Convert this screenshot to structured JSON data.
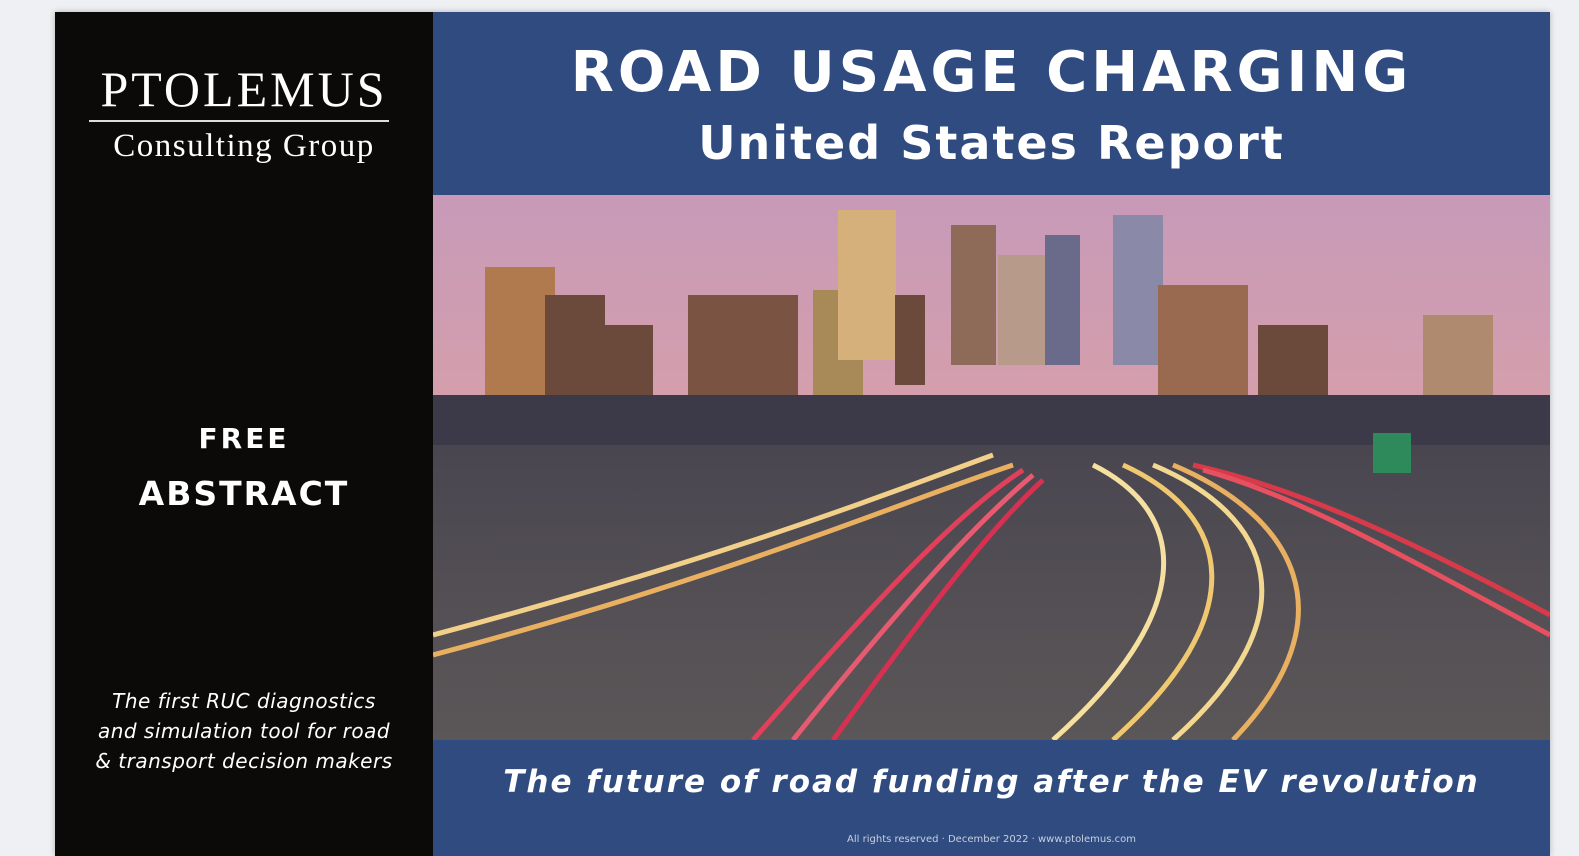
{
  "logo": {
    "name": "PTOLEMUS",
    "tagline": "Consulting Group"
  },
  "sidebar": {
    "badge": [
      "FREE",
      "ABSTRACT"
    ],
    "description": [
      "The first RUC diagnostics",
      "and simulation tool for road",
      "& transport decision makers"
    ]
  },
  "header": {
    "title": "ROAD USAGE CHARGING",
    "subtitle": "United States Report"
  },
  "footer": {
    "tagline": "The future of road funding after the EV revolution",
    "copyright": "All rights reserved · December 2022 · www.ptolemus.com"
  }
}
